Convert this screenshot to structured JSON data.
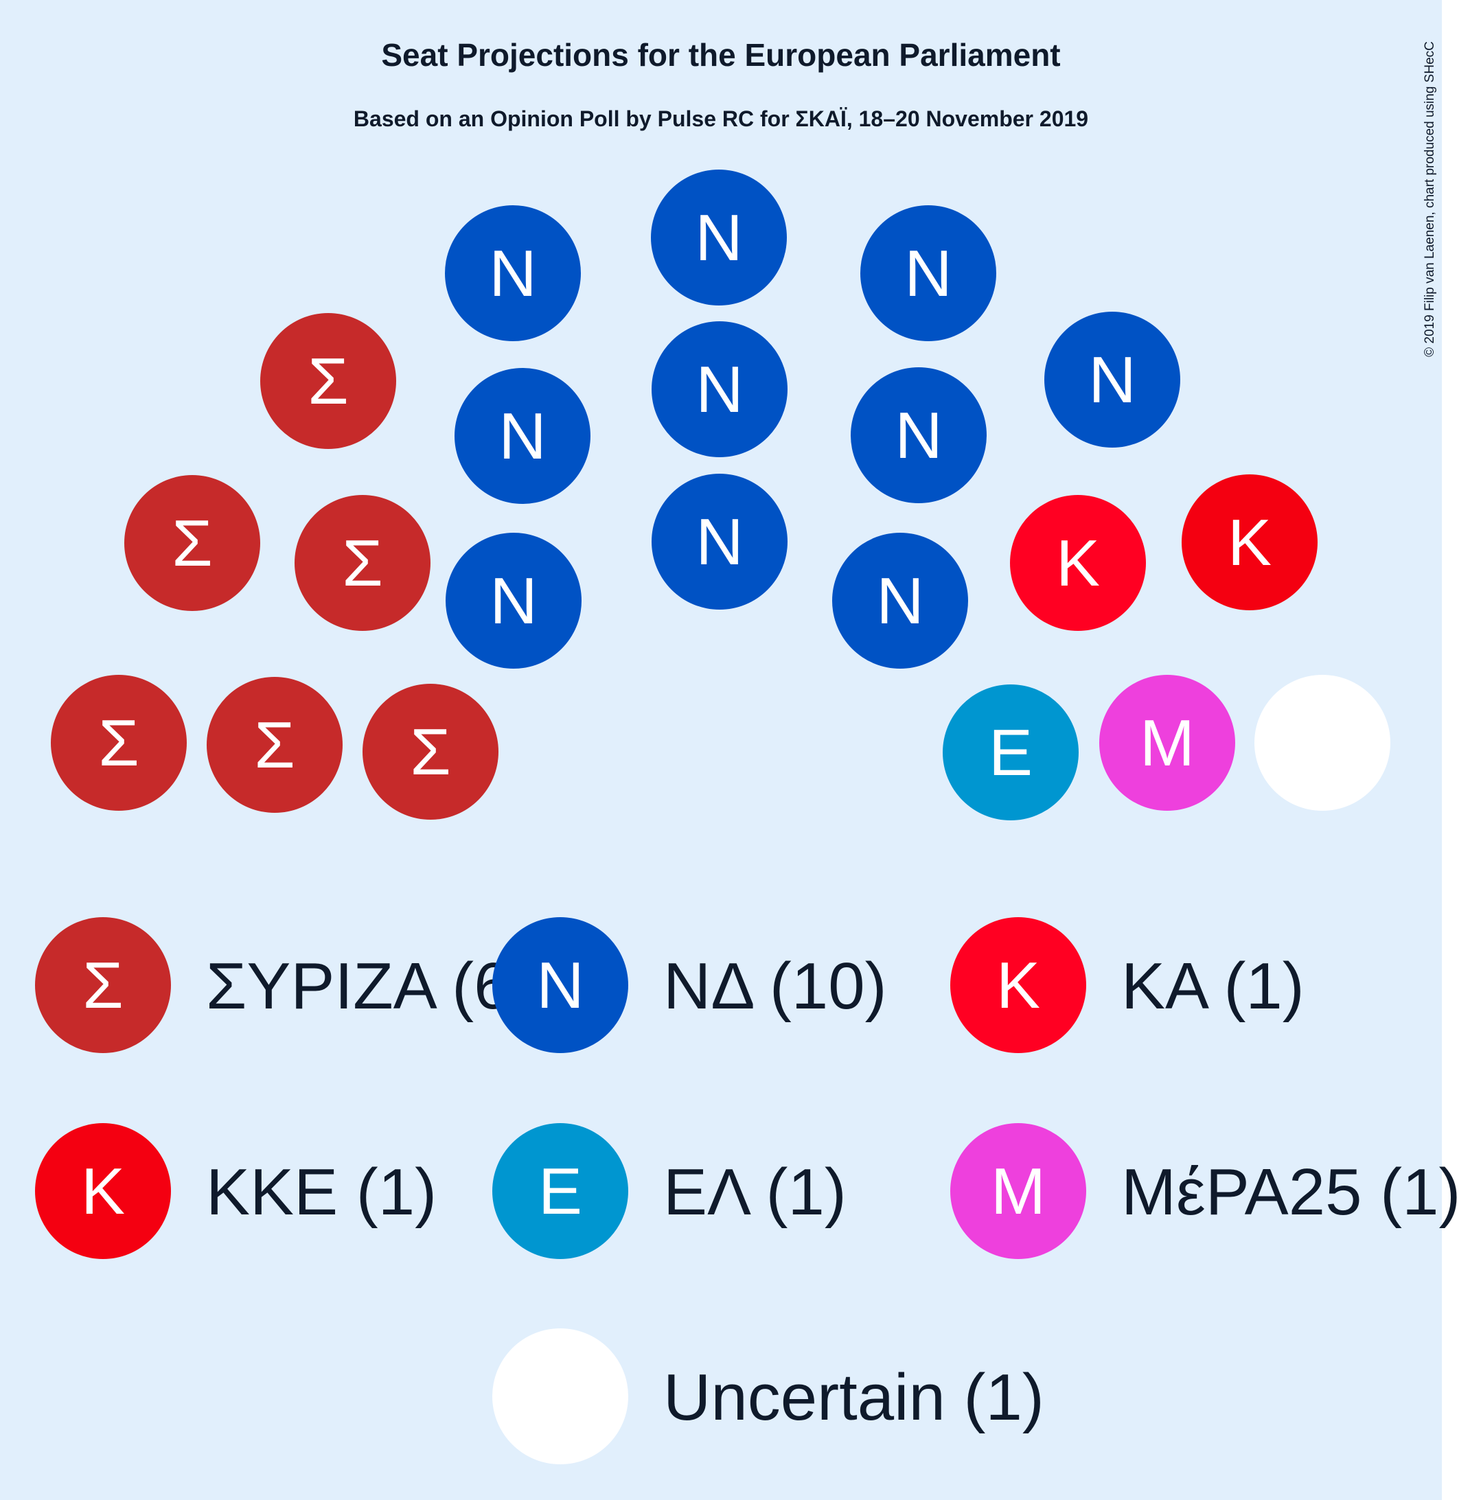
{
  "chart_data": {
    "type": "parliament",
    "title": "Seat Projections for the European Parliament",
    "subtitle": "Based on an Opinion Poll by Pulse RC for ΣΚΑΪ, 18–20 November 2019",
    "copyright": "© 2019 Filip van Laenen, chart produced using SHecC",
    "total_seats": 21,
    "parties": [
      {
        "name": "ΣΥΡΙΖΑ",
        "symbol": "Σ",
        "seats": 6,
        "color": "#C62A2A",
        "legend_label": "ΣΥΡΙΖΑ (6)"
      },
      {
        "name": "ΝΔ",
        "symbol": "N",
        "seats": 10,
        "color": "#0052C4",
        "legend_label": "ΝΔ (10)"
      },
      {
        "name": "ΚΑ",
        "symbol": "K",
        "seats": 1,
        "color": "#FF0022",
        "legend_label": "ΚΑ (1)"
      },
      {
        "name": "ΚΚΕ",
        "symbol": "K",
        "seats": 1,
        "color": "#F40011",
        "legend_label": "ΚΚΕ (1)"
      },
      {
        "name": "ΕΛ",
        "symbol": "E",
        "seats": 1,
        "color": "#0096D0",
        "legend_label": "ΕΛ (1)"
      },
      {
        "name": "ΜέΡΑ25",
        "symbol": "M",
        "seats": 1,
        "color": "#EE40DD",
        "legend_label": "ΜέΡΑ25 (1)"
      },
      {
        "name": "Uncertain",
        "symbol": "",
        "seats": 1,
        "color": "#FFFFFF",
        "legend_label": "Uncertain (1)"
      }
    ]
  }
}
